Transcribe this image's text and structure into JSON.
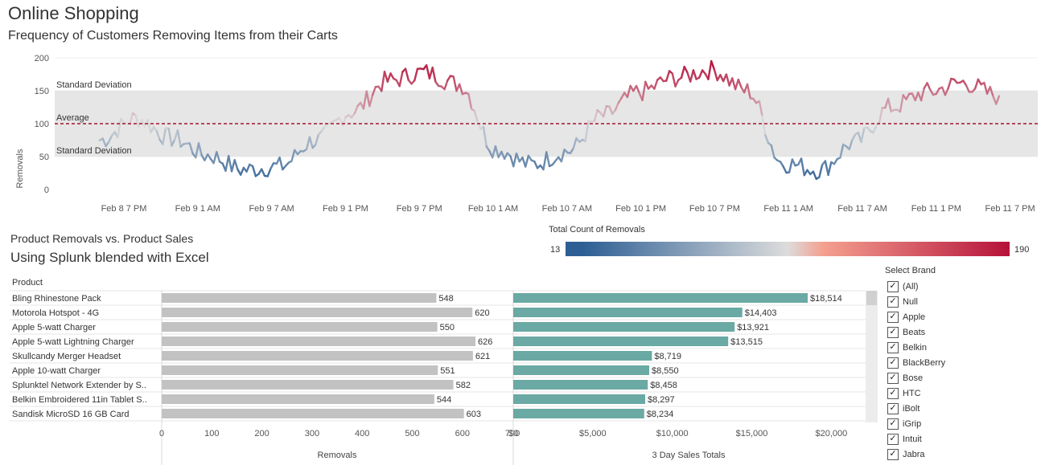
{
  "header": {
    "title": "Online Shopping",
    "subtitle": "Frequency of Customers Removing Items from their Carts"
  },
  "top_chart": {
    "ylabel": "Removals",
    "y_ticks": [
      "200",
      "150",
      "100",
      "50",
      "0"
    ],
    "band_upper_label": "Standard Deviation",
    "band_lower_label": "Standard Deviation",
    "average_label": "Average",
    "x_ticks": [
      "Feb 8 7 PM",
      "Feb 9 1 AM",
      "Feb 9 7 AM",
      "Feb 9 1 PM",
      "Feb 9 7 PM",
      "Feb 10 1 AM",
      "Feb 10 7 AM",
      "Feb 10 1 PM",
      "Feb 10 7 PM",
      "Feb 11 1 AM",
      "Feb 11 7 AM",
      "Feb 11 1 PM",
      "Feb 11 7 PM"
    ]
  },
  "legend": {
    "title": "Total Count of Removals",
    "min": "13",
    "max": "190",
    "color_low": "#2e5f94",
    "color_mid": "#dcdcdc",
    "color_high": "#b5123a"
  },
  "lower": {
    "title": "Product Removals vs. Product Sales",
    "subtitle": "Using Splunk blended with Excel",
    "product_header": "Product",
    "removals_axis_label": "Removals",
    "sales_axis_label": "3 Day Sales Totals",
    "removals_ticks": [
      "0",
      "100",
      "200",
      "300",
      "400",
      "500",
      "600",
      "700"
    ],
    "sales_ticks": [
      "$0",
      "$5,000",
      "$10,000",
      "$15,000",
      "$20,000"
    ],
    "removals_color": "#c2c2c2",
    "sales_color": "#6aa9a4"
  },
  "filter": {
    "title": "Select Brand",
    "items": [
      "(All)",
      "Null",
      "Apple",
      "Beats",
      "Belkin",
      "BlackBerry",
      "Bose",
      "HTC",
      "iBolt",
      "iGrip",
      "Intuit",
      "Jabra"
    ]
  },
  "chart_data": [
    {
      "type": "line",
      "title": "Frequency of Customers Removing Items from their Carts",
      "xlabel": "",
      "ylabel": "Removals",
      "ylim": [
        0,
        200
      ],
      "grid": true,
      "average": 100,
      "std_band": [
        50,
        150
      ],
      "x": [
        "Feb 8 5 PM",
        "Feb 8 7 PM",
        "Feb 8 10 PM",
        "Feb 9 1 AM",
        "Feb 9 4 AM",
        "Feb 9 7 AM",
        "Feb 9 10 AM",
        "Feb 9 1 PM",
        "Feb 9 4 PM",
        "Feb 9 7 PM",
        "Feb 9 10 PM",
        "Feb 10 1 AM",
        "Feb 10 4 AM",
        "Feb 10 7 AM",
        "Feb 10 10 AM",
        "Feb 10 1 PM",
        "Feb 10 4 PM",
        "Feb 10 7 PM",
        "Feb 10 10 PM",
        "Feb 11 1 AM",
        "Feb 11 4 AM",
        "Feb 11 7 AM",
        "Feb 11 10 AM",
        "Feb 11 1 PM",
        "Feb 11 4 PM",
        "Feb 11 6 PM"
      ],
      "series": [
        {
          "values": [
            75,
            108,
            78,
            52,
            30,
            35,
            75,
            118,
            165,
            178,
            160,
            62,
            38,
            58,
            112,
            148,
            170,
            182,
            150,
            40,
            30,
            72,
            125,
            148,
            162,
            142
          ]
        }
      ]
    },
    {
      "type": "bar",
      "title": "Product Removals vs. Product Sales",
      "xlabel": "Removals",
      "xlim": [
        0,
        700
      ],
      "categories": [
        "Bling Rhinestone Pack",
        "Motorola Hotspot - 4G",
        "Apple 5-watt Charger",
        "Apple 5-watt Lightning Charger",
        "Skullcandy Merger Headset",
        "Apple 10-watt Charger",
        "Splunktel Network Extender by S..",
        "Belkin Embroidered 11in Tablet S..",
        "Sandisk MicroSD 16 GB Card"
      ],
      "values": [
        548,
        620,
        550,
        626,
        621,
        551,
        582,
        544,
        603
      ]
    },
    {
      "type": "bar",
      "xlabel": "3 Day Sales Totals",
      "xlim": [
        0,
        22000
      ],
      "categories": [
        "Bling Rhinestone Pack",
        "Motorola Hotspot - 4G",
        "Apple 5-watt Charger",
        "Apple 5-watt Lightning Charger",
        "Skullcandy Merger Headset",
        "Apple 10-watt Charger",
        "Splunktel Network Extender by S..",
        "Belkin Embroidered 11in Tablet S..",
        "Sandisk MicroSD 16 GB Card"
      ],
      "values": [
        18514,
        14403,
        13921,
        13515,
        8719,
        8550,
        8458,
        8297,
        8234
      ],
      "labels": [
        "$18,514",
        "$14,403",
        "$13,921",
        "$13,515",
        "$8,719",
        "$8,550",
        "$8,458",
        "$8,297",
        "$8,234"
      ]
    }
  ]
}
